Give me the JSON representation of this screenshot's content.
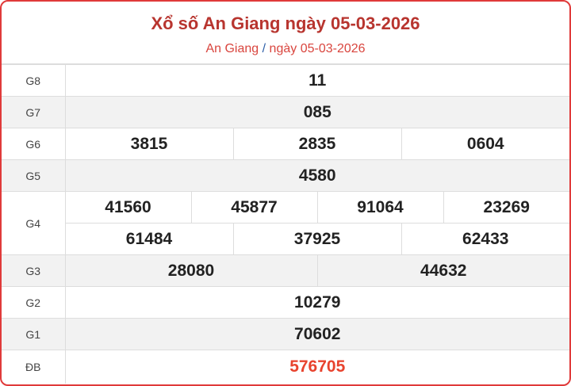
{
  "header": {
    "title": "Xổ số An Giang ngày 05-03-2026",
    "breadcrumb_province": "An Giang",
    "breadcrumb_sep": "/",
    "breadcrumb_date": "ngày 05-03-2026"
  },
  "prizes": {
    "g8": {
      "label": "G8",
      "values": [
        "11"
      ]
    },
    "g7": {
      "label": "G7",
      "values": [
        "085"
      ]
    },
    "g6": {
      "label": "G6",
      "values": [
        "3815",
        "2835",
        "0604"
      ]
    },
    "g5": {
      "label": "G5",
      "values": [
        "4580"
      ]
    },
    "g4": {
      "label": "G4",
      "values": [
        "41560",
        "45877",
        "91064",
        "23269",
        "61484",
        "37925",
        "62433"
      ]
    },
    "g3": {
      "label": "G3",
      "values": [
        "28080",
        "44632"
      ]
    },
    "g2": {
      "label": "G2",
      "values": [
        "10279"
      ]
    },
    "g1": {
      "label": "G1",
      "values": [
        "70602"
      ]
    },
    "db": {
      "label": "ĐB",
      "values": [
        "576705"
      ]
    }
  },
  "colors": {
    "border": "#e03a3a",
    "title": "#b8352f",
    "special": "#e8432e"
  }
}
